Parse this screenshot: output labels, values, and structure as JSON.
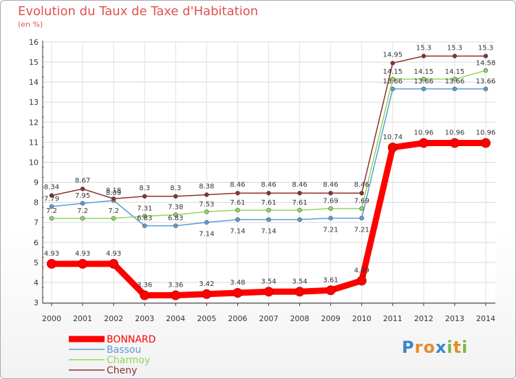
{
  "header": {
    "title": "Evolution du Taux de Taxe d'Habitation",
    "subtitle": "(en %)"
  },
  "logo": {
    "text": "Proxiti",
    "letters": [
      "P",
      "r",
      "o",
      "x",
      "i",
      "t",
      "i"
    ],
    "colors": [
      "#3a86c8",
      "#e88a2a",
      "#e88a2a",
      "#3a86c8",
      "#7ab648",
      "#e88a2a",
      "#7ab648"
    ]
  },
  "chart_data": {
    "type": "line",
    "x": [
      "2000",
      "2001",
      "2002",
      "2003",
      "2004",
      "2005",
      "2006",
      "2007",
      "2008",
      "2009",
      "2010",
      "2011",
      "2012",
      "2013",
      "2014"
    ],
    "ylim": [
      3,
      16
    ],
    "yticks": [
      "3",
      "4",
      "5",
      "6",
      "7",
      "8",
      "9",
      "10",
      "11",
      "12",
      "13",
      "14",
      "15",
      "16"
    ],
    "grid": true,
    "legend_position": "bottom-left",
    "series": [
      {
        "name": "BONNARD",
        "color": "#ff0000",
        "values": [
          4.93,
          4.93,
          4.93,
          3.36,
          3.36,
          3.42,
          3.48,
          3.54,
          3.54,
          3.61,
          4.09,
          10.74,
          10.96,
          10.96,
          10.96
        ],
        "labels": [
          "4.93",
          "4.93",
          "4.93",
          "3.36",
          "3.36",
          "3.42",
          "3.48",
          "3.54",
          "3.54",
          "3.61",
          "4.09",
          "10.74",
          "10.96",
          "10.96",
          "10.96"
        ]
      },
      {
        "name": "Bassou",
        "color": "#5a9bd5",
        "values": [
          7.79,
          7.95,
          8.09,
          6.83,
          6.83,
          7.0,
          7.14,
          7.14,
          7.14,
          7.21,
          7.21,
          13.66,
          13.66,
          13.66,
          13.66
        ],
        "labels": [
          "7.79",
          "7.95",
          "8.09",
          "6.83",
          "6.83",
          "",
          "",
          "",
          "",
          "",
          "",
          "13.66",
          "13.66",
          "13.66",
          "13.66"
        ]
      },
      {
        "name": "Charmoy",
        "color": "#8fd65a",
        "values": [
          7.2,
          7.2,
          7.2,
          7.31,
          7.38,
          7.53,
          7.61,
          7.61,
          7.61,
          7.69,
          7.69,
          14.15,
          14.15,
          14.15,
          14.58
        ],
        "labels": [
          "7.2",
          "7.2",
          "7.2",
          "7.31",
          "7.38",
          "7.53",
          "7.61",
          "7.61",
          "7.61",
          "7.69",
          "7.69",
          "14.15",
          "14.15",
          "14.15",
          "14.58"
        ]
      },
      {
        "name": "Cheny",
        "color": "#8b2e2e",
        "values": [
          8.34,
          8.67,
          8.18,
          8.3,
          8.3,
          8.38,
          8.46,
          8.46,
          8.46,
          8.46,
          8.46,
          14.95,
          15.3,
          15.3,
          15.3
        ],
        "labels": [
          "8.34",
          "8.67",
          "8.18",
          "8.3",
          "8.3",
          "8.38",
          "8.46",
          "8.46",
          "8.46",
          "8.46",
          "8.46",
          "14.95",
          "15.3",
          "15.3",
          "15.3"
        ]
      }
    ],
    "extra_labels": [
      {
        "series": "Bassou",
        "x": "2005",
        "text": "7.14"
      },
      {
        "series": "Bassou",
        "x": "2006",
        "text": "7.14"
      },
      {
        "series": "Bassou",
        "x": "2007",
        "text": "7.14"
      },
      {
        "series": "Bassou",
        "x": "2009",
        "text": "7.21"
      },
      {
        "series": "Bassou",
        "x": "2010",
        "text": "7.21"
      }
    ]
  }
}
